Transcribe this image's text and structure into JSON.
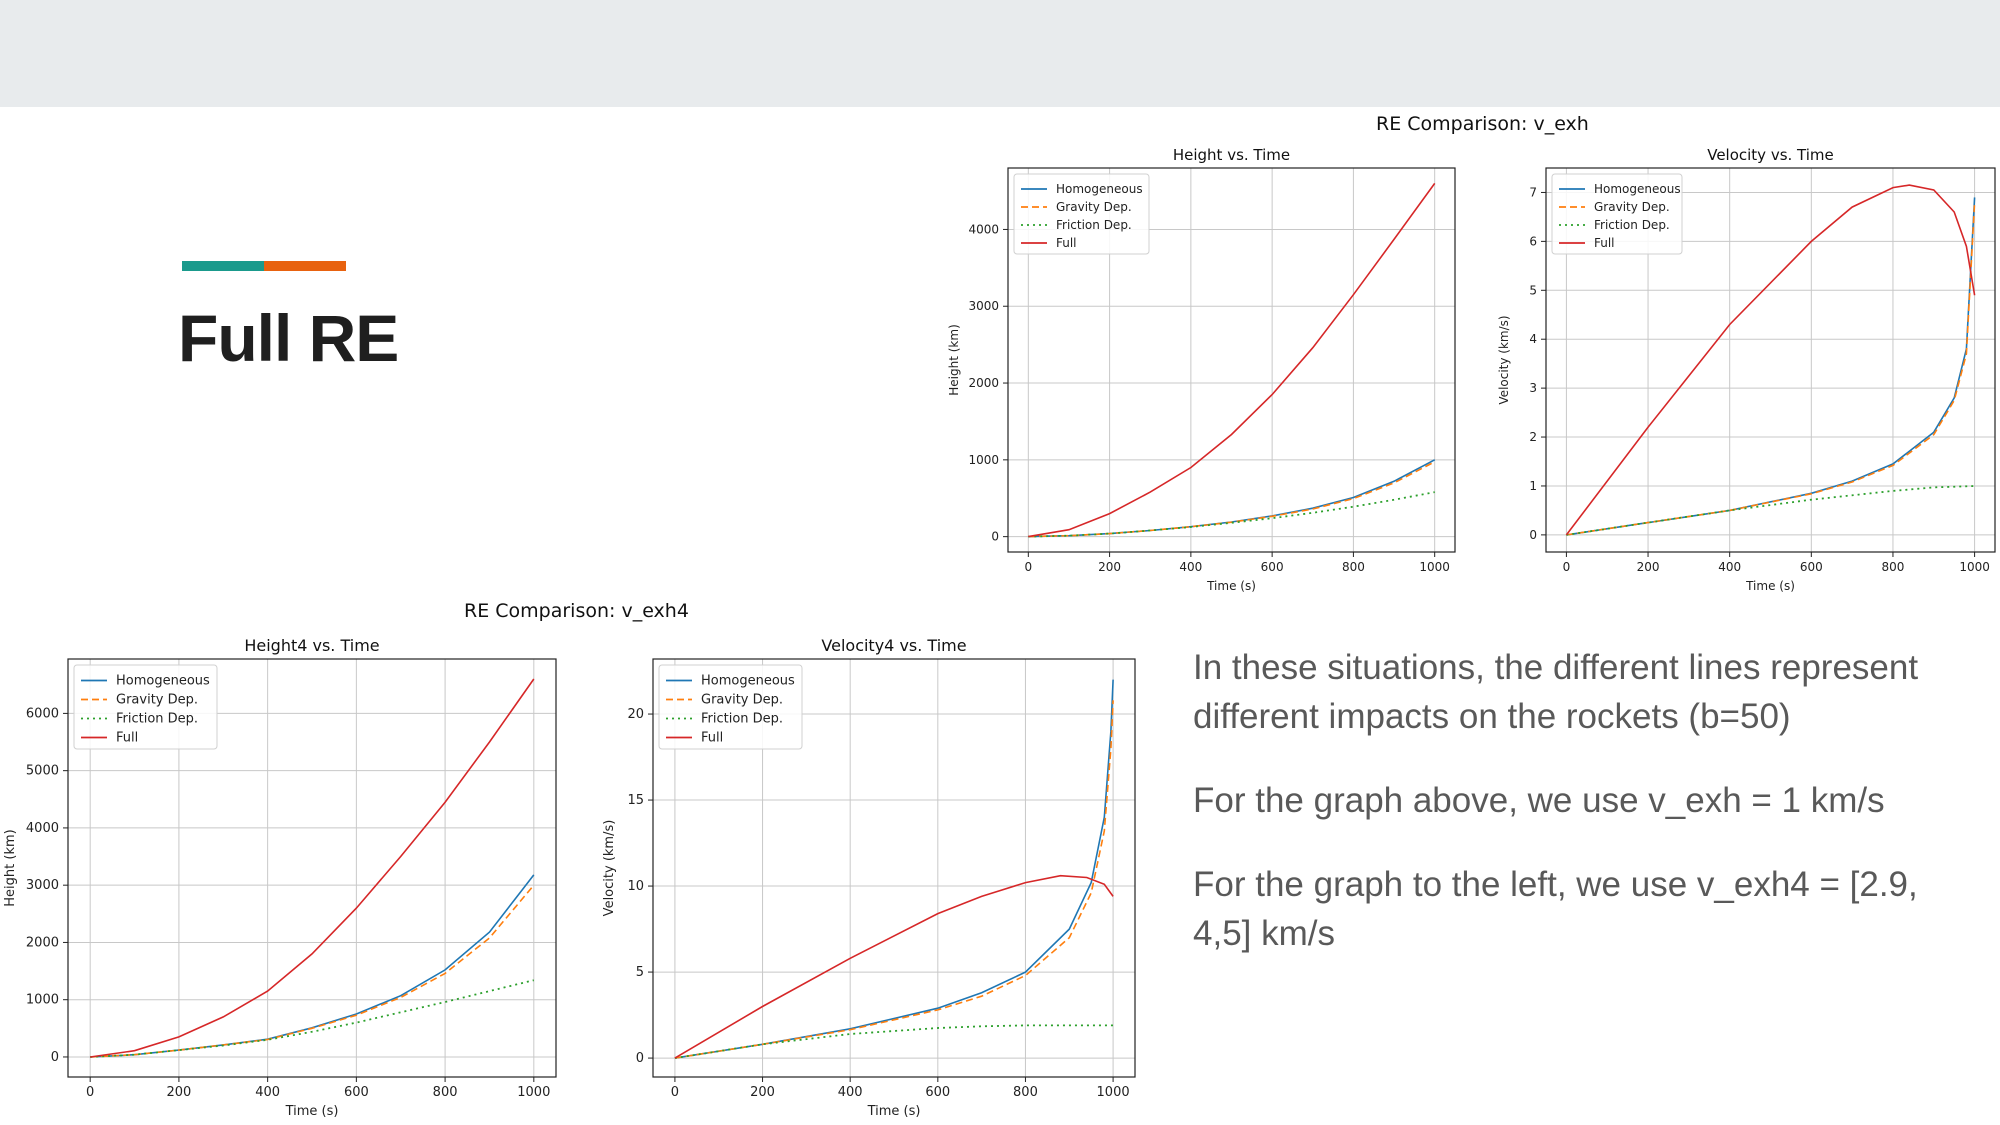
{
  "slide": {
    "title": "Full RE",
    "accent_colors": [
      "#1a9a8c",
      "#e8620f"
    ],
    "paragraphs": [
      "In these situations, the different lines represent different impacts on the rockets (b=50)",
      "For the graph above, we use v_exh = 1 km/s",
      "For the graph to the left, we use v_exh4 = [2.9, 4,5] km/s"
    ]
  },
  "figures": {
    "top": {
      "suptitle": "RE Comparison: v_exh"
    },
    "bottom": {
      "suptitle": "RE Comparison: v_exh4"
    }
  },
  "chart_data": [
    {
      "type": "line",
      "title": "Height vs. Time",
      "xlabel": "Time (s)",
      "ylabel": "Height (km)",
      "xlim": [
        -50,
        1050
      ],
      "ylim": [
        -200,
        4800
      ],
      "xticks": [
        0,
        200,
        400,
        600,
        800,
        1000
      ],
      "yticks": [
        0,
        1000,
        2000,
        3000,
        4000
      ],
      "grid": true,
      "legend": "top-left",
      "series": [
        {
          "name": "Homogeneous",
          "color": "#1f77b4",
          "dash": "solid",
          "x": [
            0,
            100,
            200,
            300,
            400,
            500,
            600,
            700,
            800,
            900,
            1000
          ],
          "y": [
            0,
            12,
            40,
            80,
            130,
            190,
            270,
            370,
            510,
            720,
            1000
          ]
        },
        {
          "name": "Gravity Dep.",
          "color": "#ff7f0e",
          "dash": "dashed",
          "x": [
            0,
            100,
            200,
            300,
            400,
            500,
            600,
            700,
            800,
            900,
            1000
          ],
          "y": [
            0,
            12,
            40,
            80,
            130,
            188,
            265,
            360,
            495,
            700,
            975
          ]
        },
        {
          "name": "Friction Dep.",
          "color": "#2ca02c",
          "dash": "dotted",
          "x": [
            0,
            100,
            200,
            300,
            400,
            500,
            600,
            700,
            800,
            900,
            1000
          ],
          "y": [
            0,
            12,
            40,
            80,
            125,
            180,
            240,
            310,
            390,
            480,
            580
          ]
        },
        {
          "name": "Full",
          "color": "#d62728",
          "dash": "solid",
          "x": [
            0,
            100,
            200,
            300,
            400,
            500,
            600,
            700,
            800,
            900,
            1000
          ],
          "y": [
            0,
            90,
            300,
            580,
            900,
            1330,
            1850,
            2460,
            3150,
            3870,
            4600
          ]
        }
      ]
    },
    {
      "type": "line",
      "title": "Velocity vs. Time",
      "xlabel": "Time (s)",
      "ylabel": "Velocity (km/s)",
      "xlim": [
        -50,
        1050
      ],
      "ylim": [
        -0.35,
        7.5
      ],
      "xticks": [
        0,
        200,
        400,
        600,
        800,
        1000
      ],
      "yticks": [
        0,
        1,
        2,
        3,
        4,
        5,
        6,
        7
      ],
      "grid": true,
      "legend": "top-left",
      "series": [
        {
          "name": "Homogeneous",
          "color": "#1f77b4",
          "dash": "solid",
          "x": [
            0,
            200,
            400,
            600,
            700,
            800,
            900,
            950,
            980,
            1000
          ],
          "y": [
            0,
            0.25,
            0.5,
            0.85,
            1.1,
            1.45,
            2.1,
            2.8,
            3.8,
            6.9
          ]
        },
        {
          "name": "Gravity Dep.",
          "color": "#ff7f0e",
          "dash": "dashed",
          "x": [
            0,
            200,
            400,
            600,
            700,
            800,
            900,
            950,
            980,
            1000
          ],
          "y": [
            0,
            0.25,
            0.5,
            0.84,
            1.08,
            1.42,
            2.05,
            2.75,
            3.7,
            6.8
          ]
        },
        {
          "name": "Friction Dep.",
          "color": "#2ca02c",
          "dash": "dotted",
          "x": [
            0,
            200,
            400,
            600,
            800,
            900,
            1000
          ],
          "y": [
            0,
            0.25,
            0.5,
            0.72,
            0.9,
            0.97,
            1.0
          ]
        },
        {
          "name": "Full",
          "color": "#d62728",
          "dash": "solid",
          "x": [
            0,
            200,
            400,
            600,
            700,
            800,
            840,
            900,
            950,
            980,
            1000
          ],
          "y": [
            0,
            2.2,
            4.3,
            6.0,
            6.7,
            7.1,
            7.15,
            7.05,
            6.6,
            5.9,
            4.9
          ]
        }
      ]
    },
    {
      "type": "line",
      "title": "Height4 vs. Time",
      "xlabel": "Time (s)",
      "ylabel": "Height (km)",
      "xlim": [
        -50,
        1050
      ],
      "ylim": [
        -350,
        6950
      ],
      "xticks": [
        0,
        200,
        400,
        600,
        800,
        1000
      ],
      "yticks": [
        0,
        1000,
        2000,
        3000,
        4000,
        5000,
        6000
      ],
      "grid": true,
      "legend": "top-left",
      "series": [
        {
          "name": "Homogeneous",
          "color": "#1f77b4",
          "dash": "solid",
          "x": [
            0,
            100,
            200,
            300,
            400,
            500,
            600,
            700,
            800,
            900,
            1000
          ],
          "y": [
            0,
            40,
            120,
            210,
            310,
            510,
            750,
            1070,
            1520,
            2180,
            3180
          ]
        },
        {
          "name": "Gravity Dep.",
          "color": "#ff7f0e",
          "dash": "dashed",
          "x": [
            0,
            100,
            200,
            300,
            400,
            500,
            600,
            700,
            800,
            900,
            1000
          ],
          "y": [
            0,
            40,
            120,
            210,
            305,
            500,
            730,
            1040,
            1460,
            2080,
            3000
          ]
        },
        {
          "name": "Friction Dep.",
          "color": "#2ca02c",
          "dash": "dotted",
          "x": [
            0,
            100,
            200,
            300,
            400,
            500,
            600,
            700,
            800,
            900,
            1000
          ],
          "y": [
            0,
            40,
            120,
            200,
            300,
            440,
            600,
            780,
            960,
            1150,
            1340
          ]
        },
        {
          "name": "Full",
          "color": "#d62728",
          "dash": "solid",
          "x": [
            0,
            100,
            200,
            300,
            400,
            500,
            600,
            700,
            800,
            900,
            1000
          ],
          "y": [
            0,
            110,
            350,
            700,
            1150,
            1800,
            2600,
            3500,
            4450,
            5500,
            6600
          ]
        }
      ]
    },
    {
      "type": "line",
      "title": "Velocity4 vs. Time",
      "xlabel": "Time (s)",
      "ylabel": "Velocity (km/s)",
      "xlim": [
        -50,
        1050
      ],
      "ylim": [
        -1.1,
        23.2
      ],
      "xticks": [
        0,
        200,
        400,
        600,
        800,
        1000
      ],
      "yticks": [
        0,
        5,
        10,
        15,
        20
      ],
      "grid": true,
      "legend": "top-left",
      "series": [
        {
          "name": "Homogeneous",
          "color": "#1f77b4",
          "dash": "solid",
          "x": [
            0,
            200,
            400,
            600,
            700,
            800,
            900,
            950,
            980,
            995,
            1000
          ],
          "y": [
            0,
            0.8,
            1.7,
            2.9,
            3.8,
            5.0,
            7.5,
            10.2,
            14.0,
            19.0,
            22.0
          ]
        },
        {
          "name": "Gravity Dep.",
          "color": "#ff7f0e",
          "dash": "dashed",
          "x": [
            0,
            200,
            400,
            600,
            700,
            800,
            900,
            950,
            980,
            995,
            1000
          ],
          "y": [
            0,
            0.8,
            1.65,
            2.8,
            3.6,
            4.8,
            7.0,
            9.6,
            13.2,
            18.0,
            20.8
          ]
        },
        {
          "name": "Friction Dep.",
          "color": "#2ca02c",
          "dash": "dotted",
          "x": [
            0,
            200,
            400,
            600,
            700,
            800,
            900,
            1000
          ],
          "y": [
            0,
            0.8,
            1.4,
            1.75,
            1.85,
            1.9,
            1.9,
            1.9
          ]
        },
        {
          "name": "Full",
          "color": "#d62728",
          "dash": "solid",
          "x": [
            0,
            200,
            400,
            600,
            700,
            800,
            880,
            940,
            980,
            1000
          ],
          "y": [
            0,
            3.0,
            5.8,
            8.4,
            9.4,
            10.2,
            10.6,
            10.5,
            10.1,
            9.4
          ]
        }
      ]
    }
  ]
}
